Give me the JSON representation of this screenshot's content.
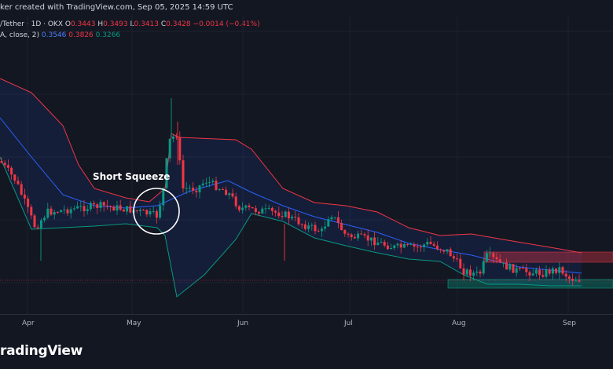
{
  "header": {
    "credit": "ker created with TradingView.com, Sep 05, 2025 14:59 UTC"
  },
  "legend": {
    "symbol": "/Tether · 1D · OKX",
    "o_label": "O",
    "o_value": "0.3443",
    "h_label": "H",
    "h_value": "0.3493",
    "l_label": "L",
    "l_value": "0.3413",
    "c_label": "C",
    "c_value": "0.3428",
    "change": "−0.0014 (−0.41%)",
    "bb_label": "A, close, 2)",
    "bb_basis": "0.3546",
    "bb_upper": "0.3826",
    "bb_lower": "0.3266"
  },
  "annotation": {
    "text": "Short Squeeze"
  },
  "xaxis": {
    "labels": [
      "Apr",
      "May",
      "Jun",
      "Jul",
      "Aug",
      "Sep"
    ]
  },
  "footer": {
    "brand": "radingView"
  },
  "colors": {
    "up": "#089981",
    "down": "#f23645",
    "upper_band": "#f23645",
    "basis": "#2962ff",
    "lower_band": "#089981"
  }
}
